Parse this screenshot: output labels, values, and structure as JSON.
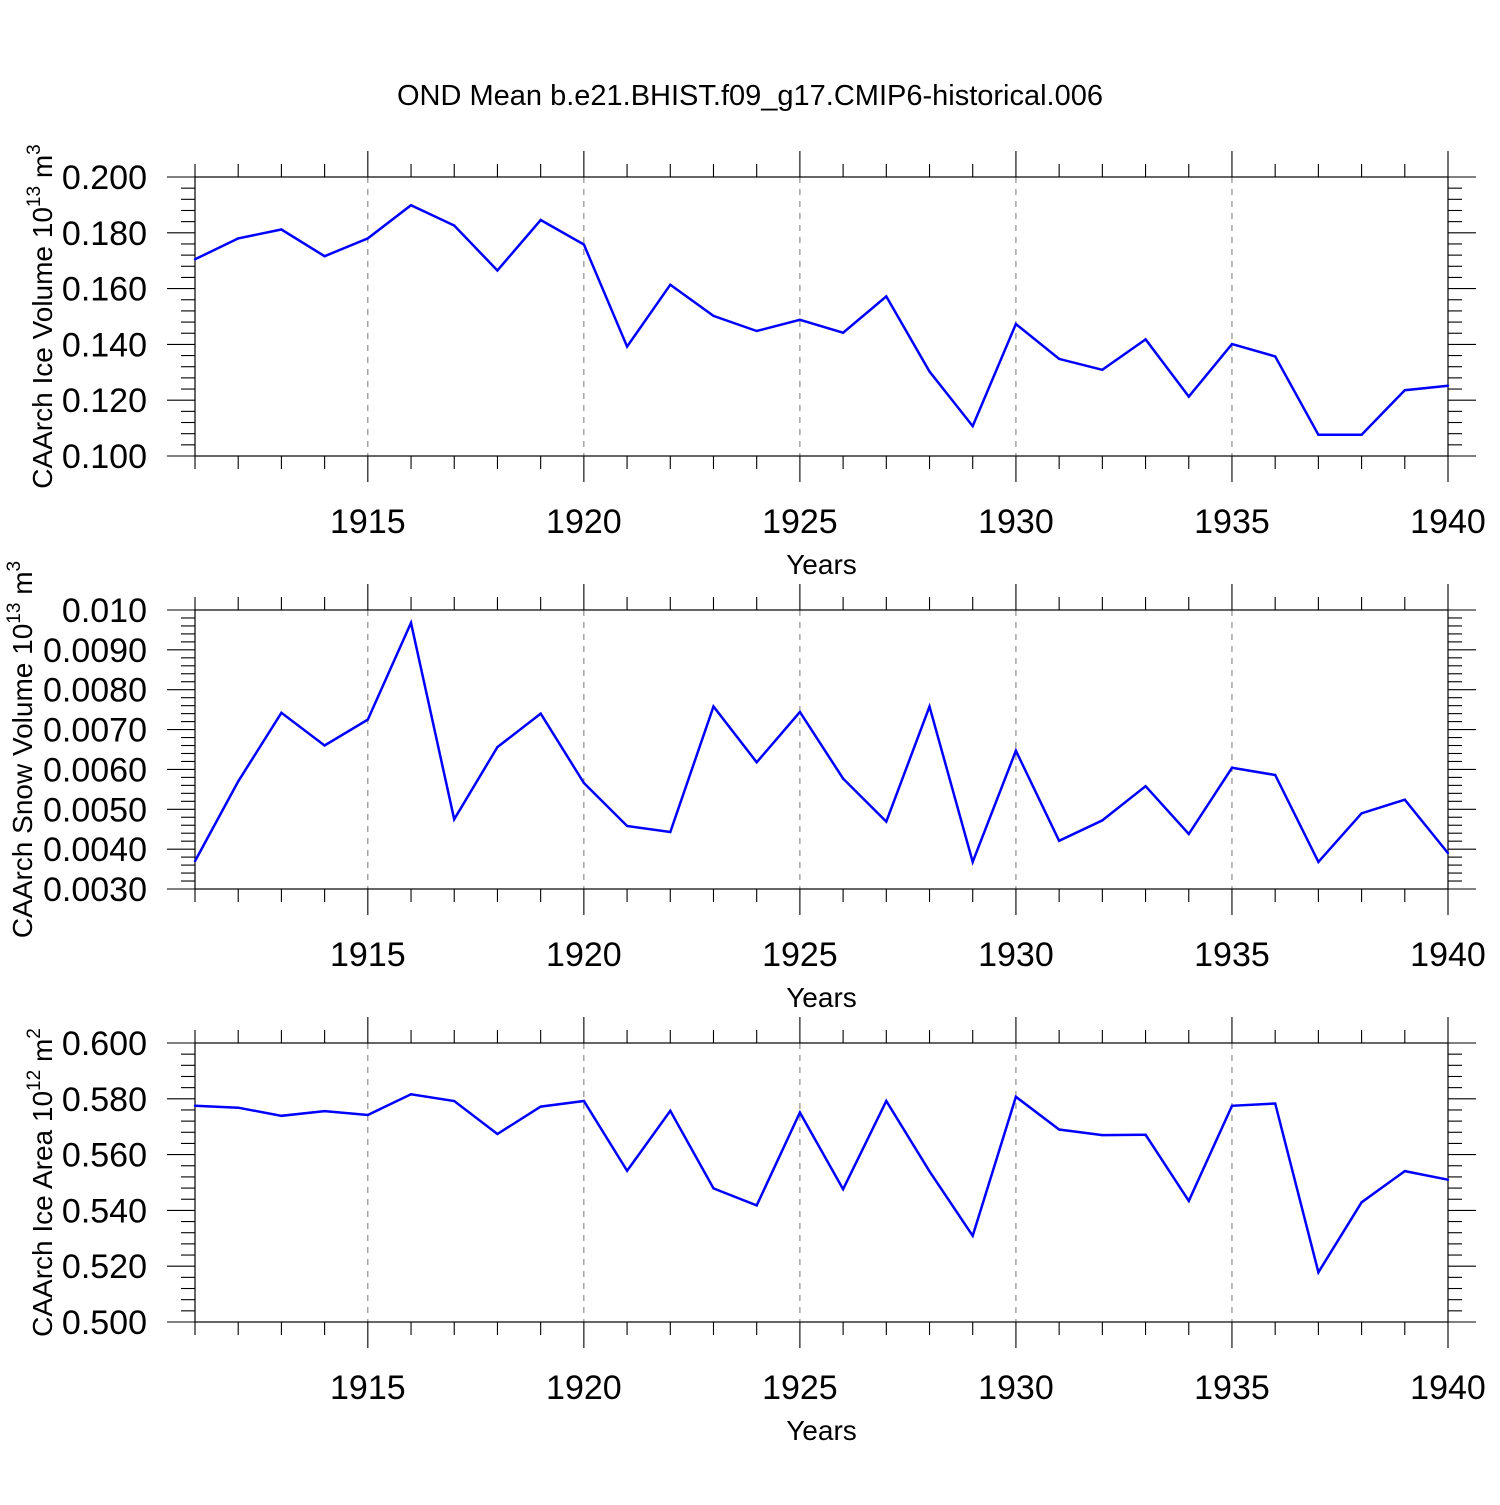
{
  "figure_title": "OND Mean b.e21.BHIST.f09_g17.CMIP6-historical.006",
  "colors": {
    "series": "#0000ff",
    "axes": "#000000",
    "grid": "#777777"
  },
  "chart_data": [
    {
      "type": "line",
      "ylabel": {
        "text": "CAArch Ice Volume 10",
        "sup": "13",
        "unit": " m",
        "unit_sup": "3"
      },
      "xlabel": "Years",
      "xlim": [
        1911,
        1940
      ],
      "ylim": [
        0.1,
        0.2
      ],
      "yticks": [
        0.1,
        0.12,
        0.14,
        0.16,
        0.18,
        0.2
      ],
      "ytick_labels": [
        "0.100",
        "0.120",
        "0.140",
        "0.160",
        "0.180",
        "0.200"
      ],
      "xticks": [
        1915,
        1920,
        1925,
        1930,
        1935,
        1940
      ],
      "xtick_labels": [
        "1915",
        "1920",
        "1925",
        "1930",
        "1935",
        "1940"
      ],
      "y_minor_step": 0.004,
      "grid": "vertical dashed at major x ticks",
      "x": [
        1911,
        1912,
        1913,
        1914,
        1915,
        1916,
        1917,
        1918,
        1919,
        1920,
        1921,
        1922,
        1923,
        1924,
        1925,
        1926,
        1927,
        1928,
        1929,
        1930,
        1931,
        1932,
        1933,
        1934,
        1935,
        1936,
        1937,
        1938,
        1939,
        1940
      ],
      "values": [
        0.1705,
        0.178,
        0.1812,
        0.1716,
        0.178,
        0.1899,
        0.1826,
        0.1665,
        0.1846,
        0.1758,
        0.1392,
        0.1614,
        0.1502,
        0.1448,
        0.1488,
        0.1442,
        0.1572,
        0.1303,
        0.1107,
        0.1473,
        0.1348,
        0.1309,
        0.1418,
        0.1213,
        0.1401,
        0.1357,
        0.1076,
        0.1076,
        0.1236,
        0.1252
      ]
    },
    {
      "type": "line",
      "ylabel": {
        "text": "CAArch Snow Volume 10",
        "sup": "13",
        "unit": " m",
        "unit_sup": "3"
      },
      "xlabel": "Years",
      "xlim": [
        1911,
        1940
      ],
      "ylim": [
        0.003,
        0.01
      ],
      "yticks": [
        0.003,
        0.004,
        0.005,
        0.006,
        0.007,
        0.008,
        0.009,
        0.01
      ],
      "ytick_labels": [
        "0.0030",
        "0.0040",
        "0.0050",
        "0.0060",
        "0.0070",
        "0.0080",
        "0.0090",
        "0.010"
      ],
      "xticks": [
        1915,
        1920,
        1925,
        1930,
        1935,
        1940
      ],
      "xtick_labels": [
        "1915",
        "1920",
        "1925",
        "1930",
        "1935",
        "1940"
      ],
      "y_minor_step": 0.0002,
      "grid": "vertical dashed at major x ticks",
      "x": [
        1911,
        1912,
        1913,
        1914,
        1915,
        1916,
        1917,
        1918,
        1919,
        1920,
        1921,
        1922,
        1923,
        1924,
        1925,
        1926,
        1927,
        1928,
        1929,
        1930,
        1931,
        1932,
        1933,
        1934,
        1935,
        1936,
        1937,
        1938,
        1939,
        1940
      ],
      "values": [
        0.0037,
        0.0057,
        0.00742,
        0.0066,
        0.00725,
        0.00968,
        0.00475,
        0.00656,
        0.0074,
        0.00566,
        0.00458,
        0.00443,
        0.00758,
        0.00618,
        0.00744,
        0.00577,
        0.00469,
        0.00758,
        0.00368,
        0.00647,
        0.00421,
        0.00472,
        0.00558,
        0.00438,
        0.00604,
        0.00586,
        0.00368,
        0.0049,
        0.00524,
        0.0039
      ]
    },
    {
      "type": "line",
      "ylabel": {
        "text": "CAArch Ice Area 10",
        "sup": "12",
        "unit": " m",
        "unit_sup": "2"
      },
      "xlabel": "Years",
      "xlim": [
        1911,
        1940
      ],
      "ylim": [
        0.5,
        0.6
      ],
      "yticks": [
        0.5,
        0.52,
        0.54,
        0.56,
        0.58,
        0.6
      ],
      "ytick_labels": [
        "0.500",
        "0.520",
        "0.540",
        "0.560",
        "0.580",
        "0.600"
      ],
      "xticks": [
        1915,
        1920,
        1925,
        1930,
        1935,
        1940
      ],
      "xtick_labels": [
        "1915",
        "1920",
        "1925",
        "1930",
        "1935",
        "1940"
      ],
      "y_minor_step": 0.004,
      "grid": "vertical dashed at major x ticks",
      "x": [
        1911,
        1912,
        1913,
        1914,
        1915,
        1916,
        1917,
        1918,
        1919,
        1920,
        1921,
        1922,
        1923,
        1924,
        1925,
        1926,
        1927,
        1928,
        1929,
        1930,
        1931,
        1932,
        1933,
        1934,
        1935,
        1936,
        1937,
        1938,
        1939,
        1940
      ],
      "values": [
        0.5775,
        0.5768,
        0.5739,
        0.5756,
        0.5742,
        0.5816,
        0.5792,
        0.5674,
        0.5772,
        0.5792,
        0.5542,
        0.5757,
        0.5479,
        0.5418,
        0.5751,
        0.5476,
        0.5792,
        0.554,
        0.5309,
        0.5807,
        0.569,
        0.567,
        0.5671,
        0.5434,
        0.5775,
        0.5783,
        0.5178,
        0.5429,
        0.5541,
        0.551
      ]
    }
  ]
}
